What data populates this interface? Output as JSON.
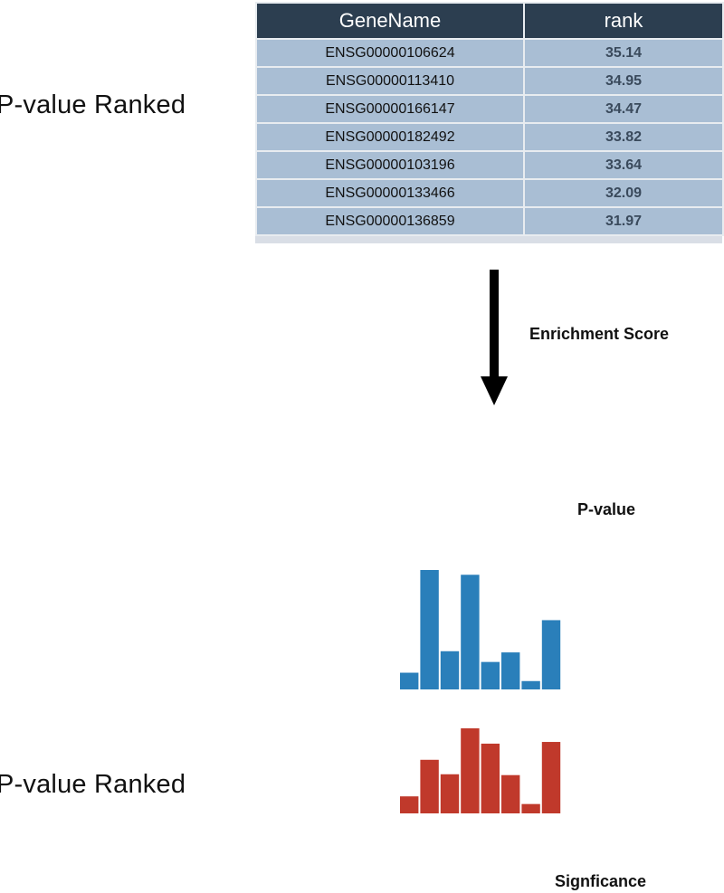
{
  "labels": {
    "top": "P-value Ranked",
    "bottom": "P-value Ranked",
    "enrichment": "Enrichment Score",
    "pvalue": "P-value",
    "significance": "Signficance"
  },
  "table": {
    "headers": [
      "GeneName",
      "rank"
    ],
    "rows": [
      [
        "ENSG00000106624",
        "35.14"
      ],
      [
        "ENSG00000113410",
        "34.95"
      ],
      [
        "ENSG00000166147",
        "34.47"
      ],
      [
        "ENSG00000182492",
        "33.82"
      ],
      [
        "ENSG00000103196",
        "33.64"
      ],
      [
        "ENSG00000133466",
        "32.09"
      ],
      [
        "ENSG00000136859",
        "31.97"
      ]
    ]
  },
  "colors": {
    "header_bg": "#2c3e50",
    "row_bg": "#a9bed4",
    "blue_bars": "#2a7fba",
    "red_bars": "#c0392b",
    "arrow": "#000000"
  },
  "chart_data": [
    {
      "type": "bar",
      "color": "#2a7fba",
      "values": [
        14,
        100,
        32,
        96,
        23,
        31,
        7,
        58
      ],
      "ylim": [
        0,
        100
      ]
    },
    {
      "type": "bar",
      "color": "#c0392b",
      "values": [
        20,
        63,
        46,
        100,
        82,
        45,
        11,
        84
      ],
      "ylim": [
        0,
        100
      ]
    }
  ]
}
